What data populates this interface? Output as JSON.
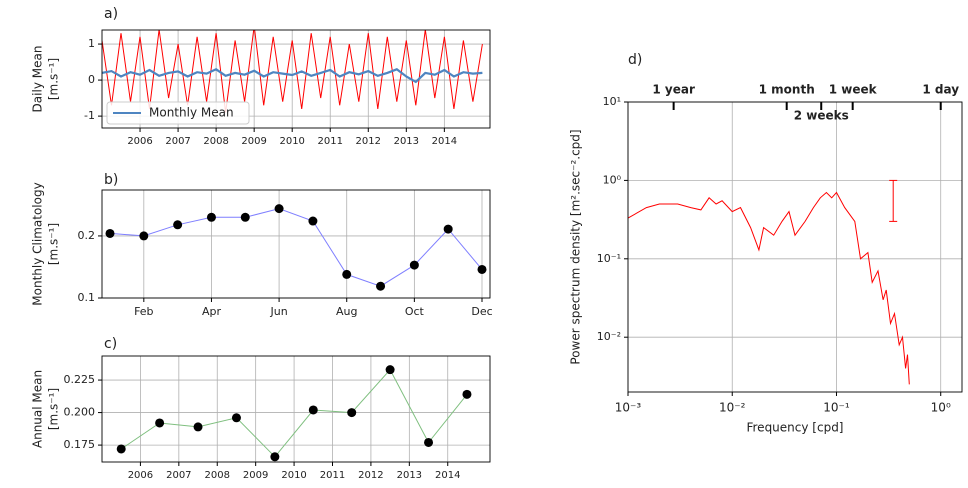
{
  "chart_data": [
    {
      "type": "line",
      "title": "a)",
      "ylabel": [
        "Daily Mean",
        "[m.s⁻¹]"
      ],
      "grid": true,
      "legend": "lower left",
      "xlim": [
        2005,
        2015.2
      ],
      "xticks": [
        2006,
        2007,
        2008,
        2009,
        2010,
        2011,
        2012,
        2013,
        2014
      ],
      "ylim": [
        -1.33,
        1.39
      ],
      "yticks": [
        -1,
        0,
        1
      ],
      "x": [
        2005,
        2005.25,
        2005.5,
        2005.75,
        2006,
        2006.25,
        2006.5,
        2006.75,
        2007,
        2007.25,
        2007.5,
        2007.75,
        2008,
        2008.25,
        2008.5,
        2008.75,
        2009,
        2009.25,
        2009.5,
        2009.75,
        2010,
        2010.25,
        2010.5,
        2010.75,
        2011,
        2011.25,
        2011.5,
        2011.75,
        2012,
        2012.25,
        2012.5,
        2012.75,
        2013,
        2013.25,
        2013.5,
        2013.75,
        2014,
        2014.25,
        2014.5,
        2014.75,
        2015
      ],
      "series": [
        {
          "color": "#ff0000",
          "width": 1,
          "values": [
            1.1,
            -0.7,
            1.3,
            -0.6,
            1.2,
            -0.8,
            1.4,
            -0.5,
            1.0,
            -0.7,
            1.2,
            -0.6,
            1.3,
            -0.9,
            1.1,
            -0.6,
            1.5,
            -0.7,
            1.2,
            -0.6,
            1.1,
            -0.8,
            1.3,
            -0.5,
            1.2,
            -0.7,
            1.0,
            -0.6,
            1.3,
            -0.8,
            1.2,
            -0.6,
            1.1,
            -0.7,
            1.4,
            -0.5,
            1.2,
            -0.8,
            1.1,
            -0.6,
            1.0
          ]
        },
        {
          "name": "Monthly Mean",
          "color": "#4e85c1",
          "width": 2.2,
          "values": [
            0.2,
            0.25,
            0.1,
            0.22,
            0.15,
            0.28,
            0.12,
            0.2,
            0.24,
            0.1,
            0.22,
            0.18,
            0.3,
            0.12,
            0.2,
            0.15,
            0.26,
            0.1,
            0.22,
            0.18,
            0.14,
            0.24,
            0.12,
            0.2,
            0.28,
            0.1,
            0.22,
            0.16,
            0.25,
            0.12,
            0.2,
            0.3,
            0.1,
            -0.05,
            0.2,
            0.15,
            0.28,
            0.1,
            0.22,
            0.18,
            0.2
          ]
        }
      ]
    },
    {
      "type": "line",
      "title": "b)",
      "ylabel": [
        "Monthly Climatology",
        "[m.s⁻¹]"
      ],
      "grid": true,
      "categories": [
        null,
        "Feb",
        null,
        "Apr",
        null,
        "Jun",
        null,
        "Aug",
        null,
        "Oct",
        null,
        "Dec"
      ],
      "ylim": [
        0.1,
        0.274
      ],
      "yticks": [
        0.1,
        0.2
      ],
      "series": [
        {
          "color": "#7f7fff",
          "width": 1,
          "marker": "#000000",
          "values": [
            0.204,
            0.2,
            0.218,
            0.23,
            0.23,
            0.244,
            0.224,
            0.138,
            0.119,
            0.153,
            0.211,
            0.146
          ]
        }
      ]
    },
    {
      "type": "line",
      "title": "c)",
      "ylabel": [
        "Annual Mean",
        "[m.s⁻¹]"
      ],
      "grid": true,
      "xlim": [
        2005,
        2015.1
      ],
      "xticks": [
        2006,
        2007,
        2008,
        2009,
        2010,
        2011,
        2012,
        2013,
        2014
      ],
      "ylim": [
        0.162,
        0.2435
      ],
      "yticks": [
        0.175,
        {
          "value": 0.2,
          "label": "0.200"
        },
        0.225
      ],
      "x": [
        2005.5,
        2006.5,
        2007.5,
        2008.5,
        2009.5,
        2010.5,
        2011.5,
        2012.5,
        2013.5,
        2014.5
      ],
      "series": [
        {
          "color": "#7fbf7f",
          "width": 1,
          "marker": "#000000",
          "values": [
            0.172,
            0.192,
            0.189,
            0.196,
            0.166,
            0.202,
            0.2,
            0.233,
            0.177,
            0.214
          ]
        }
      ]
    },
    {
      "type": "line",
      "title": "d)",
      "xlabel": "Frequency [cpd]",
      "ylabel": [
        "Power spectrum density [m².sec⁻².cpd]"
      ],
      "grid": true,
      "log_x": true,
      "log_y": true,
      "xlim": [
        0.001,
        1.6
      ],
      "xticks": [
        {
          "value": 0.001,
          "label": "10⁻³"
        },
        {
          "value": 0.01,
          "label": "10⁻²"
        },
        {
          "value": 0.1,
          "label": "10⁻¹"
        },
        {
          "value": 1,
          "label": "10⁰"
        }
      ],
      "ylim": [
        0.002,
        10
      ],
      "yticks": [
        {
          "value": 0.01,
          "label": "10⁻²"
        },
        {
          "value": 0.1,
          "label": "10⁻¹"
        },
        {
          "value": 1,
          "label": "10⁰"
        },
        {
          "value": 10,
          "label": "10¹"
        }
      ],
      "top_ticks": [
        {
          "value": 0.00274,
          "label": "1 year"
        },
        {
          "value": 0.0333,
          "label": "1 month"
        },
        {
          "value": 0.0714,
          "label": "2 weeks"
        },
        {
          "value": 0.143,
          "label": "1 week"
        },
        {
          "value": 1,
          "label": "1 day"
        }
      ],
      "error_bar": {
        "x": 0.35,
        "low": 0.3,
        "high": 1,
        "color": "#ff0000"
      },
      "x": [
        0.001,
        0.0015,
        0.002,
        0.003,
        0.004,
        0.005,
        0.006,
        0.007,
        0.008,
        0.01,
        0.012,
        0.015,
        0.018,
        0.02,
        0.025,
        0.03,
        0.035,
        0.04,
        0.05,
        0.06,
        0.07,
        0.08,
        0.09,
        0.1,
        0.12,
        0.15,
        0.17,
        0.2,
        0.22,
        0.25,
        0.28,
        0.3,
        0.33,
        0.36,
        0.4,
        0.43,
        0.46,
        0.48,
        0.5
      ],
      "series": [
        {
          "color": "#ff0000",
          "width": 1,
          "values": [
            0.33,
            0.45,
            0.5,
            0.5,
            0.45,
            0.42,
            0.6,
            0.5,
            0.55,
            0.4,
            0.45,
            0.25,
            0.13,
            0.25,
            0.2,
            0.3,
            0.4,
            0.2,
            0.3,
            0.45,
            0.6,
            0.7,
            0.6,
            0.7,
            0.45,
            0.3,
            0.1,
            0.12,
            0.05,
            0.07,
            0.03,
            0.04,
            0.015,
            0.02,
            0.008,
            0.01,
            0.004,
            0.006,
            0.0025
          ]
        }
      ]
    }
  ]
}
